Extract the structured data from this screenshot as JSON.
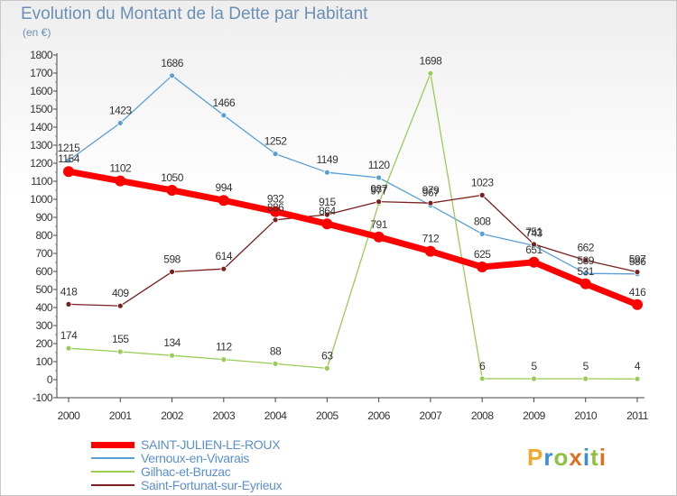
{
  "header": {
    "title": "Evolution du Montant de la Dette par Habitant",
    "unit": "(en €)"
  },
  "brand": {
    "letters": [
      "P",
      "r",
      "o",
      "x",
      "i",
      "t",
      "i"
    ],
    "colors": [
      "#f0a830",
      "#3a8fd0",
      "#90c040",
      "#e07020",
      "#3a8fd0",
      "#90c040",
      "#e07020"
    ]
  },
  "chart_data": {
    "type": "line",
    "title": "Evolution du Montant de la Dette par Habitant",
    "subtitle": "(en €)",
    "x": [
      "2000",
      "2001",
      "2002",
      "2003",
      "2004",
      "2005",
      "2006",
      "2007",
      "2008",
      "2009",
      "2010",
      "2011"
    ],
    "ylim": [
      -100,
      1800
    ],
    "yticks": [
      "-100",
      "0",
      "100",
      "200",
      "300",
      "400",
      "500",
      "600",
      "700",
      "800",
      "900",
      "1000",
      "1100",
      "1200",
      "1300",
      "1400",
      "1500",
      "1600",
      "1700",
      "1800"
    ],
    "grid": false,
    "legend_position": "bottom-left",
    "series": [
      {
        "name": "SAINT-JULIEN-LE-ROUX",
        "color": "#ff0000",
        "values": [
          1154,
          1102,
          1050,
          994,
          932,
          864,
          791,
          712,
          625,
          651,
          531,
          416
        ],
        "labels": [
          "1154",
          "1102",
          "1050",
          "994",
          "932",
          "864",
          "791",
          "712",
          "625",
          "651",
          "531",
          "416"
        ]
      },
      {
        "name": "Vernoux-en-Vivarais",
        "color": "#5a9fd4",
        "values": [
          1215,
          1423,
          1686,
          1466,
          1252,
          1149,
          1120,
          967,
          808,
          743,
          589,
          586
        ],
        "labels": [
          "1215",
          "1423",
          "1686",
          "1466",
          "1252",
          "1149",
          "1120",
          "967",
          "808",
          "743",
          "589",
          "586"
        ]
      },
      {
        "name": "Gilhac-et-Bruzac",
        "color": "#99cc55",
        "values": [
          174,
          155,
          134,
          112,
          88,
          63,
          977,
          1698,
          6,
          5,
          5,
          4
        ],
        "labels": [
          "174",
          "155",
          "134",
          "112",
          "88",
          "63",
          "977",
          "1698",
          "6",
          "5",
          "5",
          "4"
        ]
      },
      {
        "name": "Saint-Fortunat-sur-Eyrieux",
        "color": "#7a2020",
        "values": [
          418,
          409,
          598,
          614,
          886,
          915,
          987,
          979,
          1023,
          751,
          662,
          597
        ],
        "labels": [
          "418",
          "409",
          "598",
          "614",
          "886",
          "915",
          "987",
          "979",
          "1023",
          "751",
          "662",
          "597"
        ]
      }
    ]
  }
}
